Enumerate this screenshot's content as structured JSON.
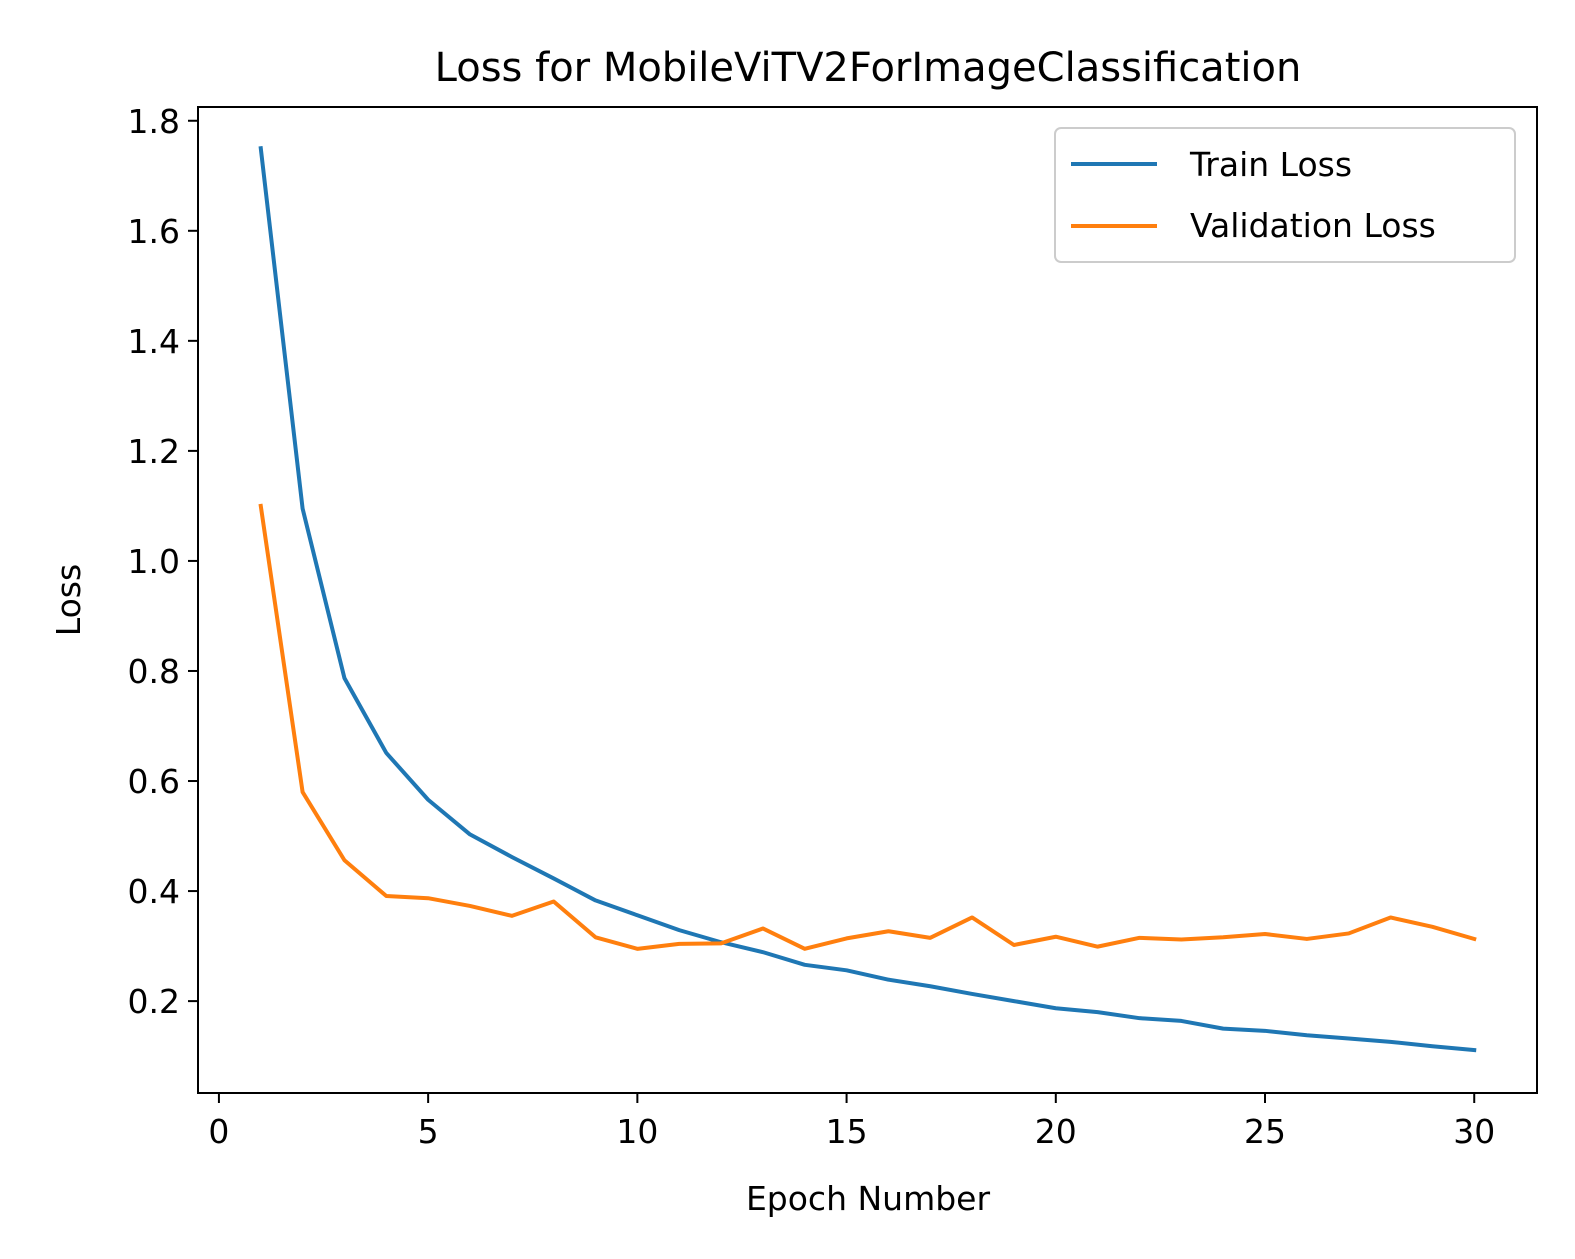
{
  "chart_data": {
    "type": "line",
    "title": "Loss for MobileViTV2ForImageClassification",
    "xlabel": "Epoch Number",
    "ylabel": "Loss",
    "xlim": [
      -0.5,
      31.5
    ],
    "ylim": [
      0.033,
      1.825
    ],
    "xticks": [
      0,
      5,
      10,
      15,
      20,
      25,
      30
    ],
    "yticks": [
      0.2,
      0.4,
      0.6,
      0.8,
      1.0,
      1.2,
      1.4,
      1.6,
      1.8
    ],
    "xtick_labels": [
      "0",
      "5",
      "10",
      "15",
      "20",
      "25",
      "30"
    ],
    "ytick_labels": [
      "0.2",
      "0.4",
      "0.6",
      "0.8",
      "1.0",
      "1.2",
      "1.4",
      "1.6",
      "1.8"
    ],
    "grid": false,
    "legend_position": "top-right",
    "x": [
      1,
      2,
      3,
      4,
      5,
      6,
      7,
      8,
      9,
      10,
      11,
      12,
      13,
      14,
      15,
      16,
      17,
      18,
      19,
      20,
      21,
      22,
      23,
      24,
      25,
      26,
      27,
      28,
      29,
      30
    ],
    "series": [
      {
        "name": "Train Loss",
        "color": "#1f77b4",
        "values": [
          1.75,
          1.095,
          0.787,
          0.651,
          0.566,
          0.503,
          0.462,
          0.423,
          0.383,
          0.356,
          0.329,
          0.307,
          0.289,
          0.266,
          0.256,
          0.239,
          0.227,
          0.213,
          0.2,
          0.187,
          0.18,
          0.169,
          0.164,
          0.15,
          0.146,
          0.138,
          0.132,
          0.126,
          0.118,
          0.111
        ]
      },
      {
        "name": "Validation Loss",
        "color": "#ff7f0e",
        "values": [
          1.1,
          0.58,
          0.456,
          0.391,
          0.387,
          0.373,
          0.355,
          0.381,
          0.316,
          0.295,
          0.304,
          0.305,
          0.332,
          0.295,
          0.314,
          0.327,
          0.315,
          0.352,
          0.302,
          0.317,
          0.299,
          0.315,
          0.312,
          0.316,
          0.322,
          0.313,
          0.323,
          0.352,
          0.335,
          0.313
        ]
      }
    ]
  }
}
